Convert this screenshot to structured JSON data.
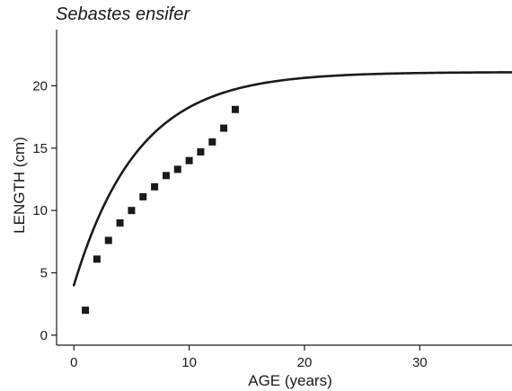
{
  "chart_data": {
    "type": "scatter",
    "title": "Sebastes ensifer",
    "xlabel": "AGE (years)",
    "ylabel": "LENGTH (cm)",
    "xlim": [
      -1.5,
      38
    ],
    "ylim": [
      -0.8,
      24.5
    ],
    "xticks": [
      0,
      10,
      20,
      30
    ],
    "yticks": [
      0,
      5,
      10,
      15,
      20
    ],
    "grid": false,
    "series": [
      {
        "kind": "points",
        "marker": "square",
        "x": [
          1,
          2,
          3,
          4,
          5,
          6,
          7,
          8,
          9,
          10,
          11,
          12,
          13,
          14
        ],
        "y": [
          2.0,
          6.1,
          7.6,
          9.0,
          10.0,
          11.1,
          11.9,
          12.8,
          13.3,
          14.0,
          14.7,
          15.5,
          16.6,
          18.1
        ]
      },
      {
        "kind": "curve",
        "model": "von Bertalanffy",
        "Linf": 21.1,
        "L0": 4.0,
        "k": 0.18,
        "x_range": [
          0,
          38
        ]
      }
    ],
    "colors": {
      "marks": "#1a1a1a",
      "axes": "#1a1a1a"
    }
  }
}
